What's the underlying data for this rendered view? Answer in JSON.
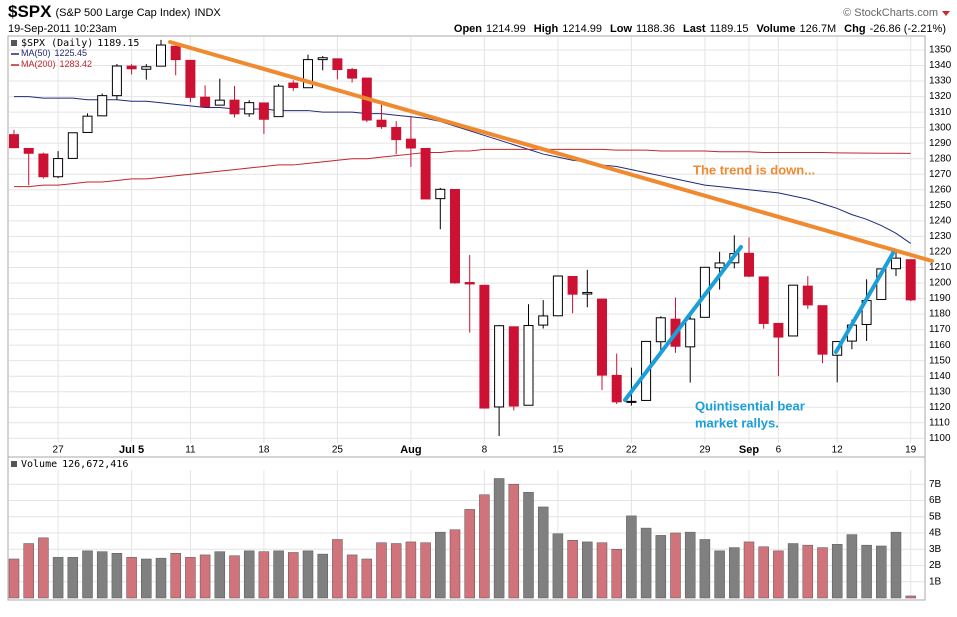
{
  "header": {
    "symbol": "$SPX",
    "name": "(S&P 500 Large Cap Index)",
    "exchange": "INDX",
    "timestamp": "19-Sep-2011 10:23am",
    "copyright": "© StockCharts.com",
    "quote": [
      {
        "label": "Open",
        "value": "1214.99"
      },
      {
        "label": "High",
        "value": "1214.99"
      },
      {
        "label": "Low",
        "value": "1188.36"
      },
      {
        "label": "Last",
        "value": "1189.15"
      },
      {
        "label": "Volume",
        "value": "126.7M"
      },
      {
        "label": "Chg",
        "value": "-26.86 (-2.21%)"
      }
    ]
  },
  "chart_data": [
    {
      "type": "candlestick",
      "name": "$SPX (Daily)",
      "up_color": "#000000",
      "down_color": "#cc1133",
      "categories": [
        null,
        null,
        null,
        "27",
        null,
        null,
        null,
        null,
        "Jul 5",
        null,
        null,
        null,
        "11",
        null,
        null,
        null,
        null,
        "18",
        null,
        null,
        null,
        null,
        "25",
        null,
        null,
        null,
        null,
        "Aug",
        null,
        null,
        null,
        null,
        "8",
        null,
        null,
        null,
        null,
        "15",
        null,
        null,
        null,
        null,
        "22",
        null,
        null,
        null,
        null,
        "29",
        null,
        null,
        "Sep",
        null,
        "6",
        null,
        null,
        null,
        "12",
        null,
        null,
        null,
        null,
        "19"
      ],
      "open": [
        1295.5,
        1286.6,
        1283.0,
        1268.4,
        1280.2,
        1296.9,
        1307.6,
        1320.6,
        1339.6,
        1337.6,
        1339.6,
        1352.4,
        1343.3,
        1319.6,
        1314.5,
        1317.7,
        1308.9,
        1315.9,
        1307.1,
        1328.7,
        1325.7,
        1343.8,
        1344.3,
        1337.4,
        1331.9,
        1304.8,
        1300.1,
        1292.6,
        1286.6,
        1254.3,
        1260.2,
        1200.3,
        1198.5,
        1120.2,
        1171.8,
        1121.3,
        1172.9,
        1178.9,
        1204.2,
        1192.9,
        1189.6,
        1140.5,
        1123.6,
        1124.4,
        1162.2,
        1176.7,
        1158.9,
        1177.9,
        1209.8,
        1213.0,
        1219.1,
        1203.9,
        1173.97,
        1165.9,
        1197.98,
        1185.4,
        1153.5,
        1162.6,
        1173.3,
        1189.4,
        1209.2,
        1214.99
      ],
      "high": [
        1298.6,
        1286.6,
        1283.9,
        1284.9,
        1296.8,
        1309.2,
        1321.97,
        1341.0,
        1340.9,
        1340.9,
        1356.5,
        1352.4,
        1343.3,
        1327.2,
        1331.5,
        1326.9,
        1317.7,
        1315.9,
        1328.1,
        1330.4,
        1347.0,
        1346.1,
        1344.3,
        1338.5,
        1331.9,
        1316.3,
        1304.2,
        1307.4,
        1286.6,
        1261.2,
        1260.2,
        1218.0,
        1198.5,
        1172.9,
        1171.8,
        1186.3,
        1189.0,
        1204.5,
        1204.2,
        1208.5,
        1189.6,
        1154.5,
        1145.5,
        1162.4,
        1178.6,
        1190.7,
        1181.2,
        1210.3,
        1220.1,
        1230.7,
        1229.3,
        1203.9,
        1173.97,
        1198.6,
        1204.4,
        1185.4,
        1162.5,
        1176.4,
        1202.4,
        1209.1,
        1220.1,
        1214.99
      ],
      "low": [
        1286.8,
        1262.9,
        1267.2,
        1267.5,
        1280.2,
        1296.9,
        1307.6,
        1318.0,
        1334.3,
        1330.9,
        1339.6,
        1333.7,
        1316.4,
        1313.3,
        1314.5,
        1306.5,
        1307.0,
        1295.9,
        1307.1,
        1323.7,
        1325.7,
        1336.9,
        1331.1,
        1329.1,
        1303.5,
        1299.2,
        1282.9,
        1274.7,
        1254.0,
        1234.6,
        1199.5,
        1168.1,
        1119.3,
        1101.5,
        1118.0,
        1121.3,
        1170.7,
        1178.9,
        1180.5,
        1184.4,
        1131.0,
        1122.1,
        1121.1,
        1124.4,
        1156.3,
        1155.0,
        1135.9,
        1177.9,
        1195.8,
        1209.4,
        1203.9,
        1170.6,
        1140.1,
        1165.9,
        1183.3,
        1148.4,
        1136.1,
        1157.4,
        1162.7,
        1189.4,
        1204.5,
        1188.36
      ],
      "close": [
        1287.1,
        1283.5,
        1268.4,
        1280.1,
        1296.7,
        1307.4,
        1320.6,
        1339.7,
        1337.9,
        1339.2,
        1353.2,
        1343.8,
        1319.5,
        1313.6,
        1317.7,
        1308.9,
        1316.1,
        1305.4,
        1326.7,
        1325.8,
        1343.8,
        1345.0,
        1337.4,
        1331.9,
        1304.9,
        1300.7,
        1292.3,
        1286.9,
        1254.1,
        1260.3,
        1200.1,
        1199.4,
        1119.5,
        1172.5,
        1120.8,
        1172.6,
        1178.8,
        1204.5,
        1192.8,
        1193.9,
        1140.7,
        1123.5,
        1123.8,
        1162.4,
        1177.6,
        1159.3,
        1176.8,
        1210.1,
        1212.9,
        1218.9,
        1204.4,
        1173.97,
        1165.2,
        1198.6,
        1185.9,
        1154.2,
        1162.3,
        1172.9,
        1188.7,
        1209.1,
        1216.0,
        1189.15
      ],
      "series": [
        {
          "name": "MA(50)",
          "color": "#1f2a7a",
          "values": [
            1320,
            1320,
            1319,
            1319,
            1319,
            1318,
            1318,
            1318,
            1317,
            1317,
            1316,
            1315,
            1314,
            1313,
            1313,
            1312,
            1312,
            1312,
            1311,
            1311,
            1311,
            1310,
            1310,
            1310,
            1309,
            1309,
            1308,
            1307,
            1306,
            1304,
            1301,
            1298,
            1295,
            1292,
            1289,
            1286,
            1283,
            1281,
            1279,
            1278,
            1276,
            1275,
            1273,
            1271,
            1269,
            1267,
            1265,
            1263,
            1262,
            1261,
            1260,
            1259,
            1258,
            1256,
            1254,
            1251,
            1248,
            1244,
            1241,
            1237,
            1232,
            1225.45
          ]
        },
        {
          "name": "MA(200)",
          "color": "#c0262d",
          "values": [
            1262,
            1262,
            1263,
            1263,
            1264,
            1265,
            1265,
            1266,
            1267,
            1267,
            1268,
            1269,
            1270,
            1271,
            1272,
            1273,
            1274,
            1275,
            1276,
            1276,
            1277,
            1278,
            1279,
            1280,
            1280,
            1281,
            1282,
            1283,
            1284,
            1284,
            1285,
            1285,
            1286,
            1286,
            1286,
            1286,
            1286,
            1286,
            1286,
            1286,
            1286,
            1285.5,
            1285.5,
            1285.5,
            1285,
            1285,
            1285,
            1285,
            1284.5,
            1284.5,
            1284.5,
            1284,
            1284,
            1284,
            1284,
            1284,
            1283.8,
            1283.7,
            1283.6,
            1283.5,
            1283.5,
            1283.42
          ]
        }
      ],
      "ylim": [
        1097,
        1359
      ],
      "yticks": [
        1100,
        1110,
        1120,
        1130,
        1140,
        1150,
        1160,
        1170,
        1180,
        1190,
        1200,
        1210,
        1220,
        1230,
        1240,
        1250,
        1260,
        1270,
        1280,
        1290,
        1300,
        1310,
        1320,
        1330,
        1340,
        1350
      ],
      "grid": true,
      "annotations": [
        {
          "text": "The trend is down...",
          "color": "#f08a30"
        },
        {
          "text": "Quintisential bear",
          "color": "#1a9fd8"
        },
        {
          "text": "market rallys.",
          "color": "#1a9fd8"
        }
      ]
    },
    {
      "type": "bar",
      "name": "Volume",
      "legend_value": "126,672,416",
      "up_color": "#808080",
      "down_color": "#d0737b",
      "values": [
        2.4,
        3.35,
        3.7,
        2.5,
        2.5,
        2.9,
        2.85,
        2.75,
        2.5,
        2.4,
        2.45,
        2.75,
        2.5,
        2.65,
        2.85,
        2.6,
        2.9,
        2.85,
        2.9,
        2.8,
        2.9,
        2.7,
        3.6,
        2.65,
        2.4,
        3.4,
        3.35,
        3.45,
        3.4,
        4.05,
        4.2,
        5.45,
        6.35,
        7.35,
        7.0,
        6.5,
        5.6,
        3.95,
        3.55,
        3.45,
        3.4,
        3.0,
        5.05,
        4.3,
        3.85,
        4.0,
        4.05,
        3.6,
        2.9,
        3.1,
        3.45,
        3.15,
        2.9,
        3.35,
        3.25,
        3.1,
        3.3,
        3.9,
        3.25,
        3.2,
        4.05,
        0.126672416
      ],
      "ylim": [
        0,
        7.75
      ],
      "yticks": [
        {
          "value": 1,
          "label": "1B"
        },
        {
          "value": 2,
          "label": "2B"
        },
        {
          "value": 3,
          "label": "3B"
        },
        {
          "value": 4,
          "label": "4B"
        },
        {
          "value": 5,
          "label": "5B"
        },
        {
          "value": 6,
          "label": "6B"
        },
        {
          "value": 7,
          "label": "7B"
        }
      ],
      "grid": true
    }
  ]
}
